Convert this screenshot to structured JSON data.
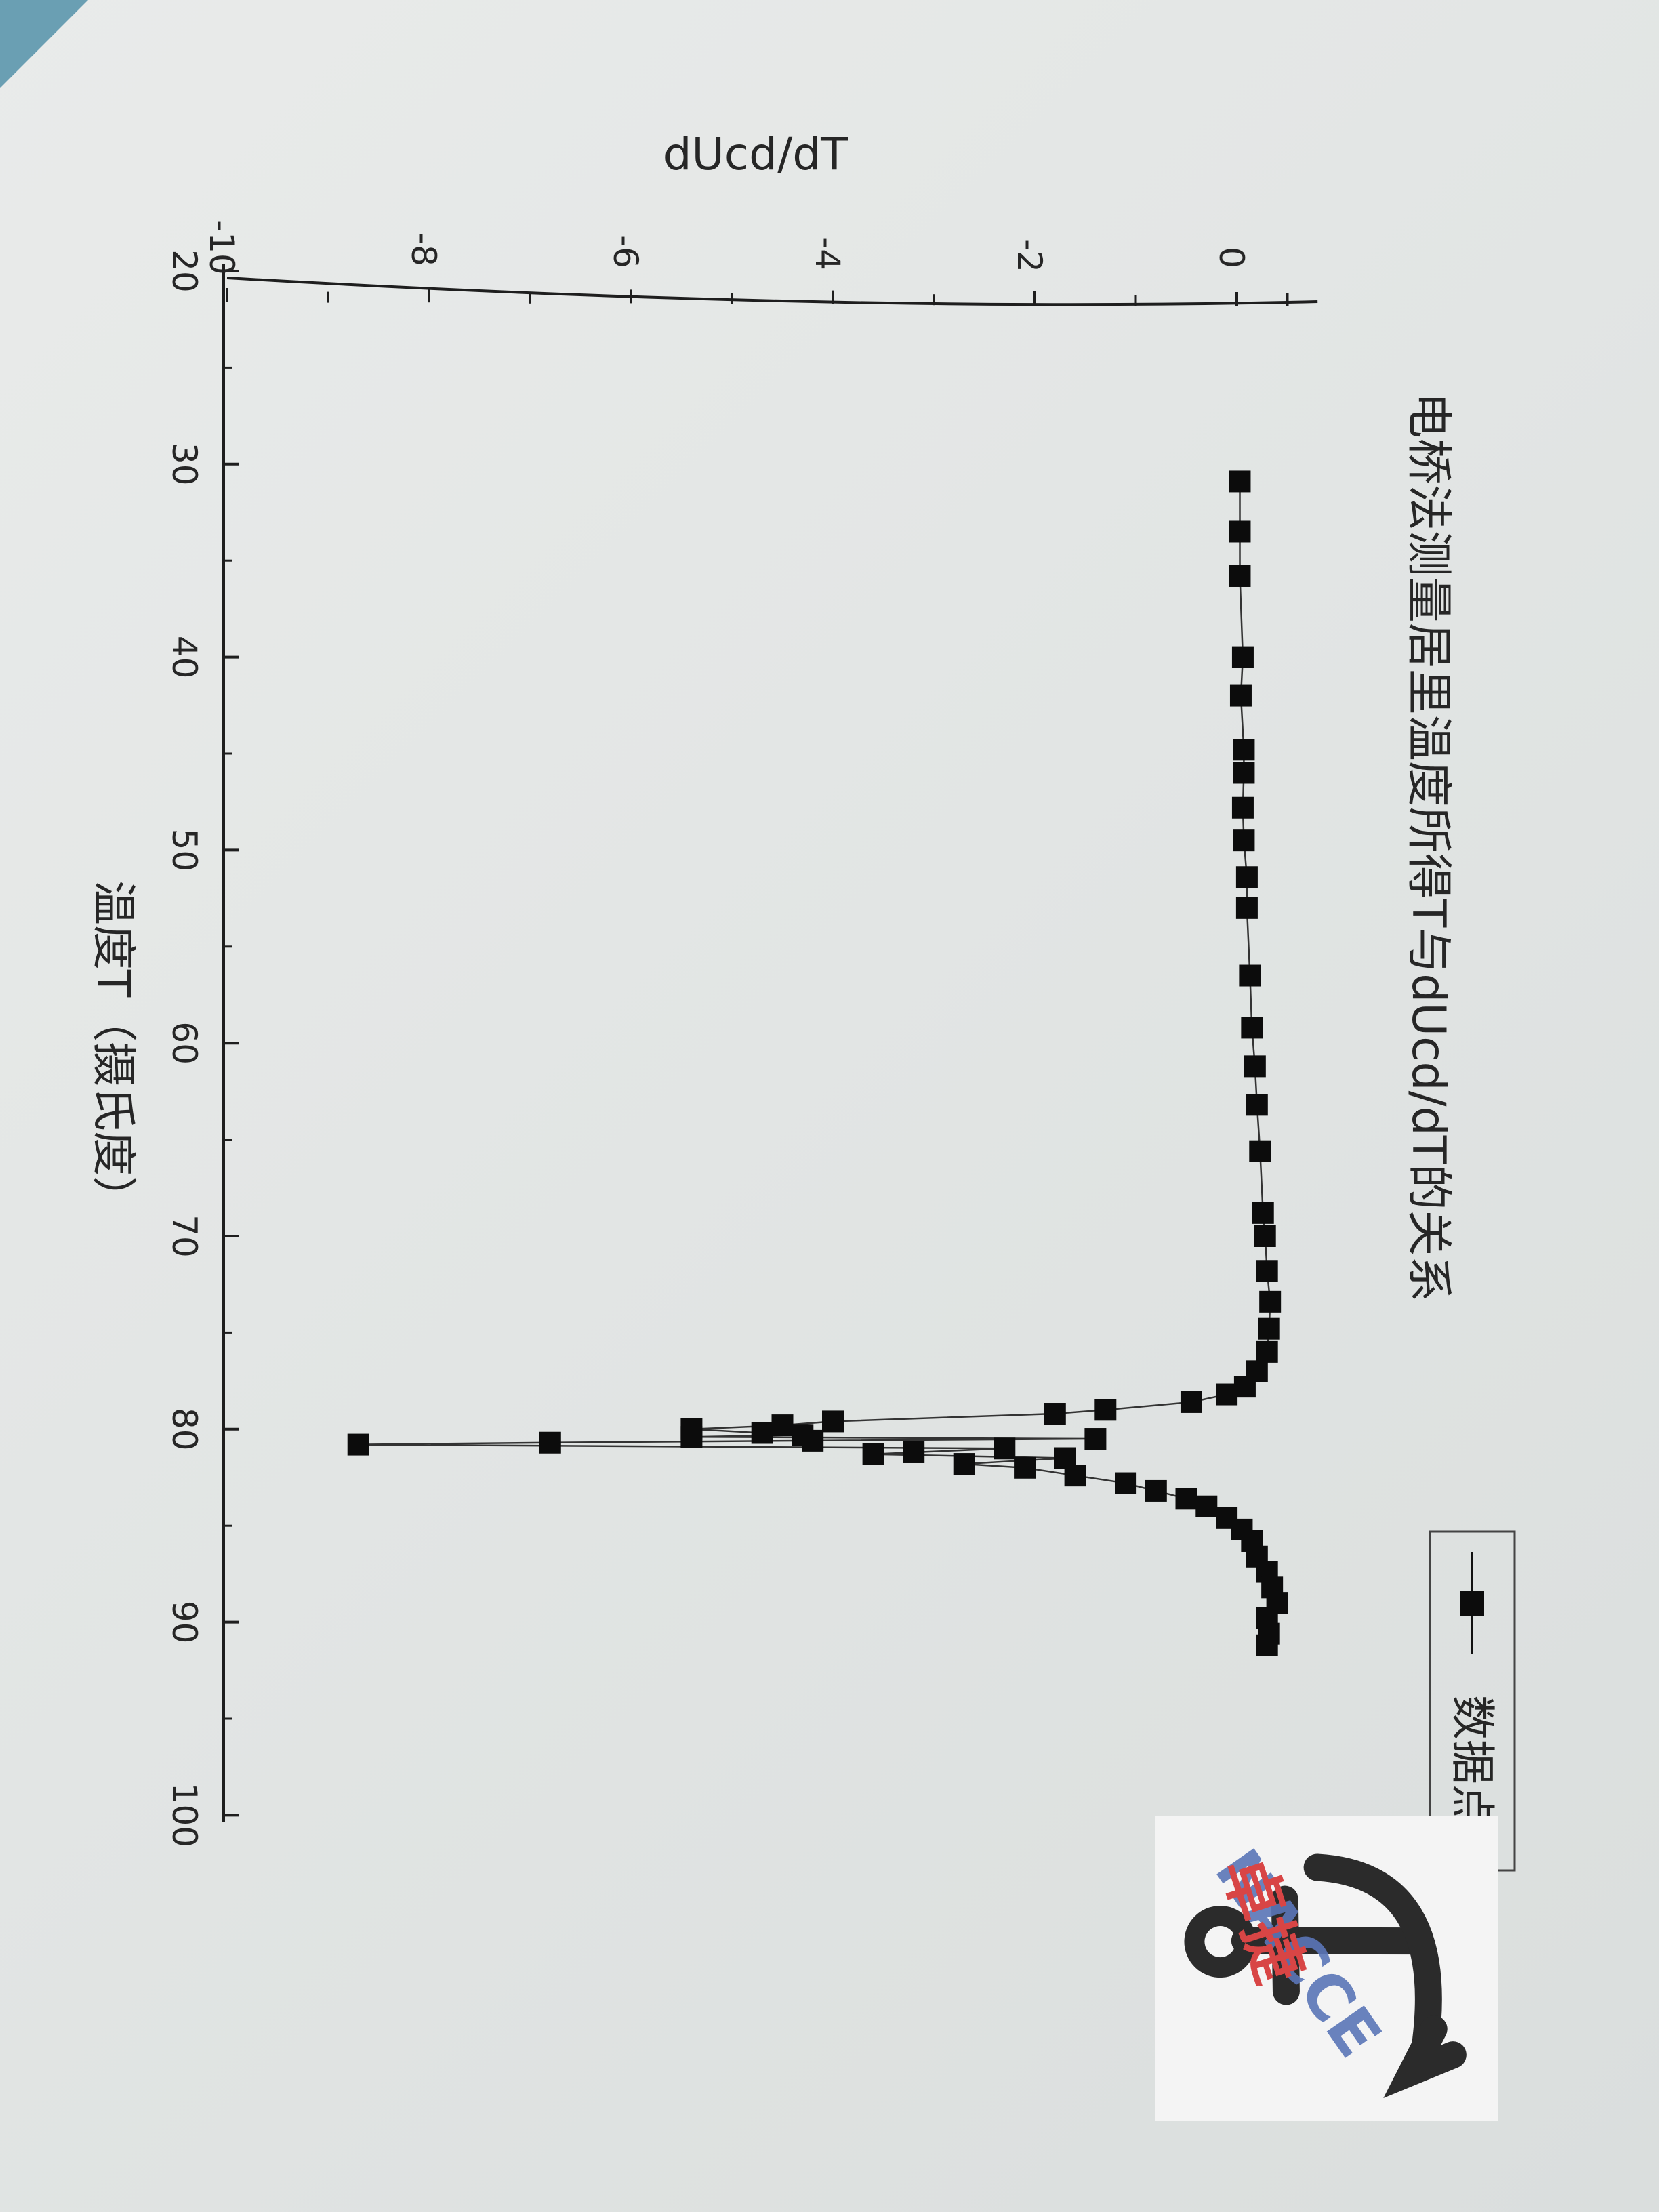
{
  "chart_data": {
    "type": "line",
    "title": "电桥法测量居里温度所得T与dUcd/dT的关系",
    "xlabel": "温度T（摄氏度）",
    "ylabel": "dUcd/dT",
    "xlim": [
      20,
      100
    ],
    "ylim": [
      -10,
      0.8
    ],
    "x_ticks": [
      20,
      30,
      40,
      50,
      60,
      70,
      80,
      90,
      100
    ],
    "y_ticks": [
      -10,
      -8,
      -6,
      -4,
      -2,
      0
    ],
    "orientation": "rotated 90 degrees clockwise on page",
    "legend": {
      "position": "top-right",
      "entries": [
        "数据点"
      ]
    },
    "series": [
      {
        "name": "数据点",
        "marker": "square",
        "line": true,
        "points": [
          [
            30.9,
            0.03
          ],
          [
            33.5,
            0.03
          ],
          [
            35.8,
            0.03
          ],
          [
            40.0,
            0.06
          ],
          [
            42.0,
            0.04
          ],
          [
            44.8,
            0.07
          ],
          [
            46.0,
            0.07
          ],
          [
            47.8,
            0.06
          ],
          [
            49.5,
            0.07
          ],
          [
            51.4,
            0.1
          ],
          [
            53.0,
            0.1
          ],
          [
            56.5,
            0.13
          ],
          [
            59.2,
            0.15
          ],
          [
            61.2,
            0.18
          ],
          [
            63.2,
            0.2
          ],
          [
            65.6,
            0.23
          ],
          [
            68.8,
            0.26
          ],
          [
            70.0,
            0.28
          ],
          [
            71.8,
            0.3
          ],
          [
            73.4,
            0.33
          ],
          [
            74.8,
            0.32
          ],
          [
            76.0,
            0.3
          ],
          [
            77.0,
            0.2
          ],
          [
            77.8,
            0.08
          ],
          [
            78.2,
            -0.1
          ],
          [
            78.6,
            -0.45
          ],
          [
            79.0,
            -1.3
          ],
          [
            79.2,
            -1.8
          ],
          [
            79.6,
            -4.0
          ],
          [
            79.8,
            -4.5
          ],
          [
            80.0,
            -5.4
          ],
          [
            80.2,
            -4.7
          ],
          [
            80.3,
            -4.3
          ],
          [
            80.4,
            -5.4
          ],
          [
            80.5,
            -1.4
          ],
          [
            80.6,
            -4.2
          ],
          [
            80.7,
            -6.8
          ],
          [
            80.8,
            -8.7
          ],
          [
            81.0,
            -2.3
          ],
          [
            81.2,
            -3.2
          ],
          [
            81.3,
            -3.6
          ],
          [
            81.5,
            -1.7
          ],
          [
            81.8,
            -2.7
          ],
          [
            82.0,
            -2.1
          ],
          [
            82.4,
            -1.6
          ],
          [
            82.8,
            -1.1
          ],
          [
            83.2,
            -0.8
          ],
          [
            83.6,
            -0.5
          ],
          [
            84.0,
            -0.3
          ],
          [
            84.6,
            -0.1
          ],
          [
            85.2,
            0.05
          ],
          [
            85.8,
            0.15
          ],
          [
            86.6,
            0.2
          ],
          [
            87.4,
            0.3
          ],
          [
            88.2,
            0.35
          ],
          [
            89.0,
            0.4
          ],
          [
            89.8,
            0.3
          ],
          [
            90.6,
            0.32
          ],
          [
            91.2,
            0.3
          ]
        ]
      }
    ]
  },
  "colors": {
    "marker": "#0c0c0c",
    "axis": "#1e1e1e",
    "paper": "#e5e8e7"
  },
  "watermark": {
    "text_cn": "卓捷",
    "text_en": "NACCE",
    "icon": "anchor-icon"
  }
}
